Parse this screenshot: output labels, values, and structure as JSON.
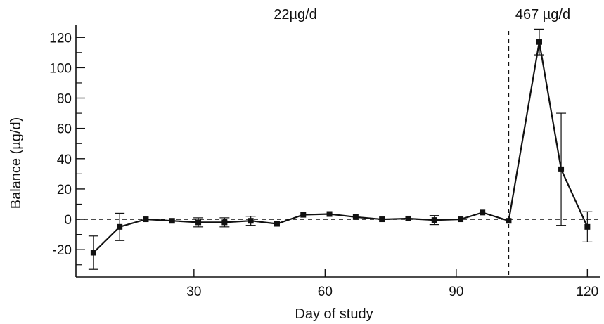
{
  "chart_data": {
    "type": "line",
    "title": "",
    "xlabel": "Day of study",
    "ylabel": "Balance (µg/d)",
    "xlim": [
      3,
      123
    ],
    "ylim": [
      -38,
      128
    ],
    "x_ticks": [
      30,
      60,
      90,
      120
    ],
    "x_tick_labels": [
      "30",
      "60",
      "90",
      "120"
    ],
    "y_ticks": [
      -20,
      0,
      20,
      40,
      60,
      80,
      100,
      120
    ],
    "y_tick_labels": [
      "-20",
      "0",
      "20",
      "40",
      "60",
      "80",
      "100",
      "120"
    ],
    "y_minor_ticks": [
      -30,
      -10,
      10,
      30,
      50,
      70,
      90,
      110
    ],
    "grid": false,
    "legend": "none",
    "reference_lines": [
      {
        "orientation": "horizontal",
        "value": 0,
        "style": "dashed"
      },
      {
        "orientation": "vertical",
        "value": 102,
        "style": "dashed"
      }
    ],
    "annotations": [
      {
        "text": "22µg/d",
        "period": "before day 102"
      },
      {
        "text": "467 µg/d",
        "period": "after day 102"
      }
    ],
    "series": [
      {
        "marker": "square",
        "color": "#111111",
        "points": [
          {
            "x": 7,
            "y": -22,
            "err": 11
          },
          {
            "x": 13,
            "y": -5,
            "err": 9
          },
          {
            "x": 19,
            "y": 0,
            "err": 0
          },
          {
            "x": 25,
            "y": -1,
            "err": 0
          },
          {
            "x": 31,
            "y": -2,
            "err": 3
          },
          {
            "x": 37,
            "y": -2,
            "err": 3
          },
          {
            "x": 43,
            "y": -1,
            "err": 3
          },
          {
            "x": 49,
            "y": -3,
            "err": 0
          },
          {
            "x": 55,
            "y": 3,
            "err": 0
          },
          {
            "x": 61,
            "y": 3.5,
            "err": 0
          },
          {
            "x": 67,
            "y": 1.5,
            "err": 0
          },
          {
            "x": 73,
            "y": 0,
            "err": 0
          },
          {
            "x": 79,
            "y": 0.5,
            "err": 0
          },
          {
            "x": 85,
            "y": -0.5,
            "err": 3
          },
          {
            "x": 91,
            "y": 0,
            "err": 0
          },
          {
            "x": 96,
            "y": 4.5,
            "err": 0
          },
          {
            "x": 102,
            "y": -1,
            "err": 0
          },
          {
            "x": 109,
            "y": 117,
            "err": 8.5
          },
          {
            "x": 114,
            "y": 33,
            "err": 37
          },
          {
            "x": 120,
            "y": -5,
            "err": 10
          }
        ]
      }
    ]
  }
}
